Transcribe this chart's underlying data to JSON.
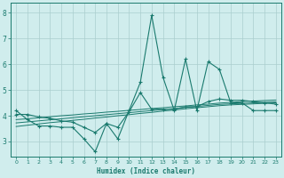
{
  "xlabel": "Humidex (Indice chaleur)",
  "x_values": [
    0,
    1,
    2,
    3,
    4,
    5,
    6,
    7,
    8,
    9,
    10,
    11,
    12,
    13,
    14,
    15,
    16,
    17,
    18,
    19,
    20,
    21,
    22,
    23
  ],
  "line1": [
    4.2,
    3.85,
    3.6,
    3.6,
    3.55,
    3.55,
    3.1,
    2.6,
    3.7,
    3.1,
    4.2,
    5.3,
    7.9,
    5.5,
    4.2,
    6.2,
    4.2,
    6.1,
    5.8,
    4.5,
    4.5,
    4.2,
    4.2,
    4.2
  ],
  "line2": [
    4.05,
    4.05,
    3.95,
    3.9,
    3.8,
    3.75,
    3.55,
    3.35,
    3.7,
    3.55,
    4.15,
    4.9,
    4.25,
    4.25,
    4.25,
    4.35,
    4.35,
    4.55,
    4.65,
    4.6,
    4.6,
    4.55,
    4.5,
    4.45
  ],
  "reg_line1": [
    3.85,
    3.88,
    3.92,
    3.96,
    4.0,
    4.03,
    4.07,
    4.1,
    4.14,
    4.17,
    4.21,
    4.24,
    4.28,
    4.31,
    4.35,
    4.38,
    4.42,
    4.45,
    4.49,
    4.52,
    4.55,
    4.57,
    4.59,
    4.61
  ],
  "reg_line2": [
    3.72,
    3.76,
    3.8,
    3.84,
    3.88,
    3.92,
    3.96,
    4.0,
    4.04,
    4.08,
    4.12,
    4.16,
    4.2,
    4.24,
    4.28,
    4.32,
    4.36,
    4.4,
    4.44,
    4.46,
    4.48,
    4.5,
    4.52,
    4.54
  ],
  "reg_line3": [
    3.58,
    3.63,
    3.68,
    3.73,
    3.77,
    3.82,
    3.86,
    3.91,
    3.95,
    4.0,
    4.04,
    4.09,
    4.13,
    4.18,
    4.22,
    4.27,
    4.31,
    4.35,
    4.39,
    4.42,
    4.44,
    4.46,
    4.48,
    4.5
  ],
  "line_color": "#1a7a6e",
  "background_color": "#d0eded",
  "grid_color": "#aacece",
  "ylim": [
    2.4,
    8.4
  ],
  "yticks": [
    3,
    4,
    5,
    6,
    7,
    8
  ],
  "xlim": [
    -0.5,
    23.5
  ]
}
